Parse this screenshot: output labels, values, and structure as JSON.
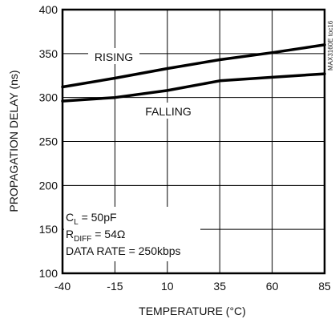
{
  "chart_data": {
    "type": "line",
    "xlabel": "TEMPERATURE (°C)",
    "ylabel": "PROPAGATION DELAY (ns)",
    "xlim": [
      -40,
      85
    ],
    "ylim": [
      100,
      400
    ],
    "xticks": [
      -40,
      -15,
      10,
      35,
      60,
      85
    ],
    "yticks": [
      100,
      150,
      200,
      250,
      300,
      350,
      400
    ],
    "grid": true,
    "series": [
      {
        "name": "RISING",
        "x": [
          -40,
          -15,
          10,
          35,
          60,
          85
        ],
        "y": [
          312,
          322,
          333,
          343,
          351,
          360
        ]
      },
      {
        "name": "FALLING",
        "x": [
          -40,
          -15,
          10,
          35,
          60,
          85
        ],
        "y": [
          296,
          300,
          308,
          319,
          323,
          327
        ]
      }
    ],
    "conditions": {
      "cl_main": "C",
      "cl_sub": "L",
      "cl_value": " = 50pF",
      "rdiff_main": "R",
      "rdiff_sub": "DIFF",
      "rdiff_value": " = 54Ω",
      "data_rate": "DATA RATE = 250kbps"
    },
    "figure_code": "MAX3160E toc16"
  }
}
